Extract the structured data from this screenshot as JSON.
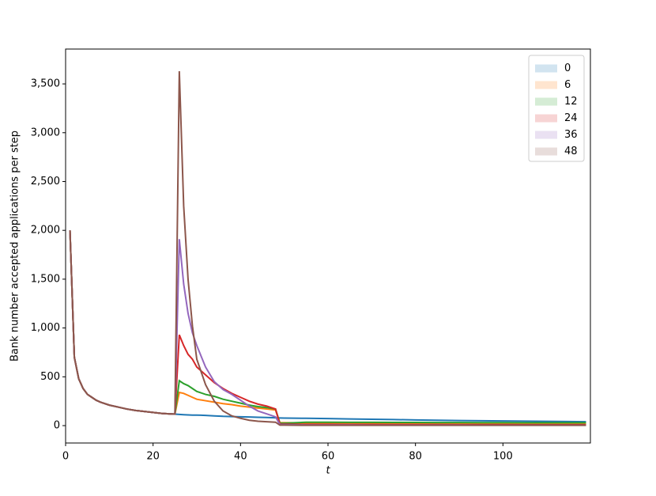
{
  "chart_data": {
    "type": "line",
    "x_label": "t",
    "y_label": "Bank number accepted applications per step",
    "x": [
      1,
      2,
      3,
      4,
      5,
      6,
      7,
      8,
      10,
      12,
      14,
      16,
      18,
      20,
      22,
      24,
      25,
      26,
      27,
      28,
      29,
      30,
      32,
      34,
      36,
      38,
      40,
      42,
      44,
      46,
      48,
      49,
      50,
      55,
      60,
      65,
      70,
      75,
      80,
      85,
      90,
      95,
      100,
      105,
      110,
      115,
      119
    ],
    "series": [
      {
        "name": "0",
        "color": "#1f77b4",
        "values": [
          2000,
          700,
          480,
          380,
          320,
          290,
          260,
          240,
          210,
          190,
          170,
          155,
          145,
          135,
          125,
          120,
          118,
          115,
          112,
          110,
          108,
          108,
          105,
          100,
          95,
          92,
          90,
          88,
          85,
          83,
          80,
          78,
          77,
          75,
          72,
          68,
          65,
          62,
          58,
          55,
          52,
          50,
          48,
          46,
          44,
          42,
          40
        ]
      },
      {
        "name": "6",
        "color": "#ff7f0e",
        "values": [
          2000,
          700,
          480,
          380,
          320,
          290,
          260,
          240,
          210,
          190,
          170,
          155,
          145,
          135,
          125,
          120,
          118,
          340,
          330,
          310,
          290,
          270,
          255,
          240,
          225,
          215,
          200,
          190,
          180,
          170,
          160,
          30,
          30,
          28,
          27,
          26,
          25,
          24,
          23,
          22,
          21,
          20,
          20,
          19,
          18,
          18,
          17
        ]
      },
      {
        "name": "12",
        "color": "#2ca02c",
        "values": [
          2000,
          700,
          480,
          380,
          320,
          290,
          260,
          240,
          210,
          190,
          170,
          155,
          145,
          135,
          125,
          120,
          118,
          460,
          430,
          410,
          380,
          350,
          320,
          300,
          270,
          250,
          230,
          210,
          195,
          185,
          170,
          25,
          25,
          35,
          35,
          34,
          34,
          33,
          33,
          32,
          32,
          31,
          31,
          30,
          30,
          30,
          30
        ]
      },
      {
        "name": "24",
        "color": "#d62728",
        "values": [
          2000,
          700,
          480,
          380,
          320,
          290,
          260,
          240,
          210,
          190,
          170,
          155,
          145,
          135,
          125,
          120,
          118,
          930,
          820,
          730,
          680,
          600,
          520,
          440,
          380,
          330,
          290,
          250,
          220,
          200,
          170,
          15,
          15,
          12,
          12,
          11,
          11,
          10,
          10,
          10,
          9,
          9,
          9,
          8,
          8,
          8,
          8
        ]
      },
      {
        "name": "36",
        "color": "#9467bd",
        "values": [
          2000,
          700,
          480,
          380,
          320,
          290,
          260,
          240,
          210,
          190,
          170,
          155,
          145,
          135,
          125,
          120,
          118,
          1910,
          1450,
          1150,
          950,
          820,
          600,
          450,
          370,
          320,
          260,
          200,
          150,
          120,
          90,
          10,
          10,
          6,
          6,
          6,
          5,
          5,
          5,
          5,
          5,
          4,
          4,
          4,
          4,
          4,
          4
        ]
      },
      {
        "name": "48",
        "color": "#8c564b",
        "values": [
          2000,
          700,
          480,
          380,
          320,
          290,
          260,
          240,
          210,
          190,
          170,
          155,
          145,
          135,
          125,
          120,
          118,
          3630,
          2250,
          1500,
          1020,
          680,
          420,
          250,
          150,
          100,
          75,
          55,
          45,
          40,
          35,
          5,
          5,
          3,
          3,
          3,
          3,
          3,
          3,
          3,
          3,
          3,
          3,
          3,
          3,
          3,
          3
        ]
      }
    ],
    "xlim": [
      0,
      120
    ],
    "ylim": [
      -178,
      3857
    ],
    "xticks": [
      0,
      20,
      40,
      60,
      80,
      100
    ],
    "yticks": [
      0,
      500,
      {
        "value": 1000,
        "label": "1,000"
      },
      {
        "value": 1500,
        "label": "1,500"
      },
      {
        "value": 2000,
        "label": "2,000"
      },
      {
        "value": 2500,
        "label": "2,500"
      },
      {
        "value": 3000,
        "label": "3,000"
      },
      {
        "value": 3500,
        "label": "3,500"
      }
    ],
    "legend": "upper right",
    "grid": false
  }
}
